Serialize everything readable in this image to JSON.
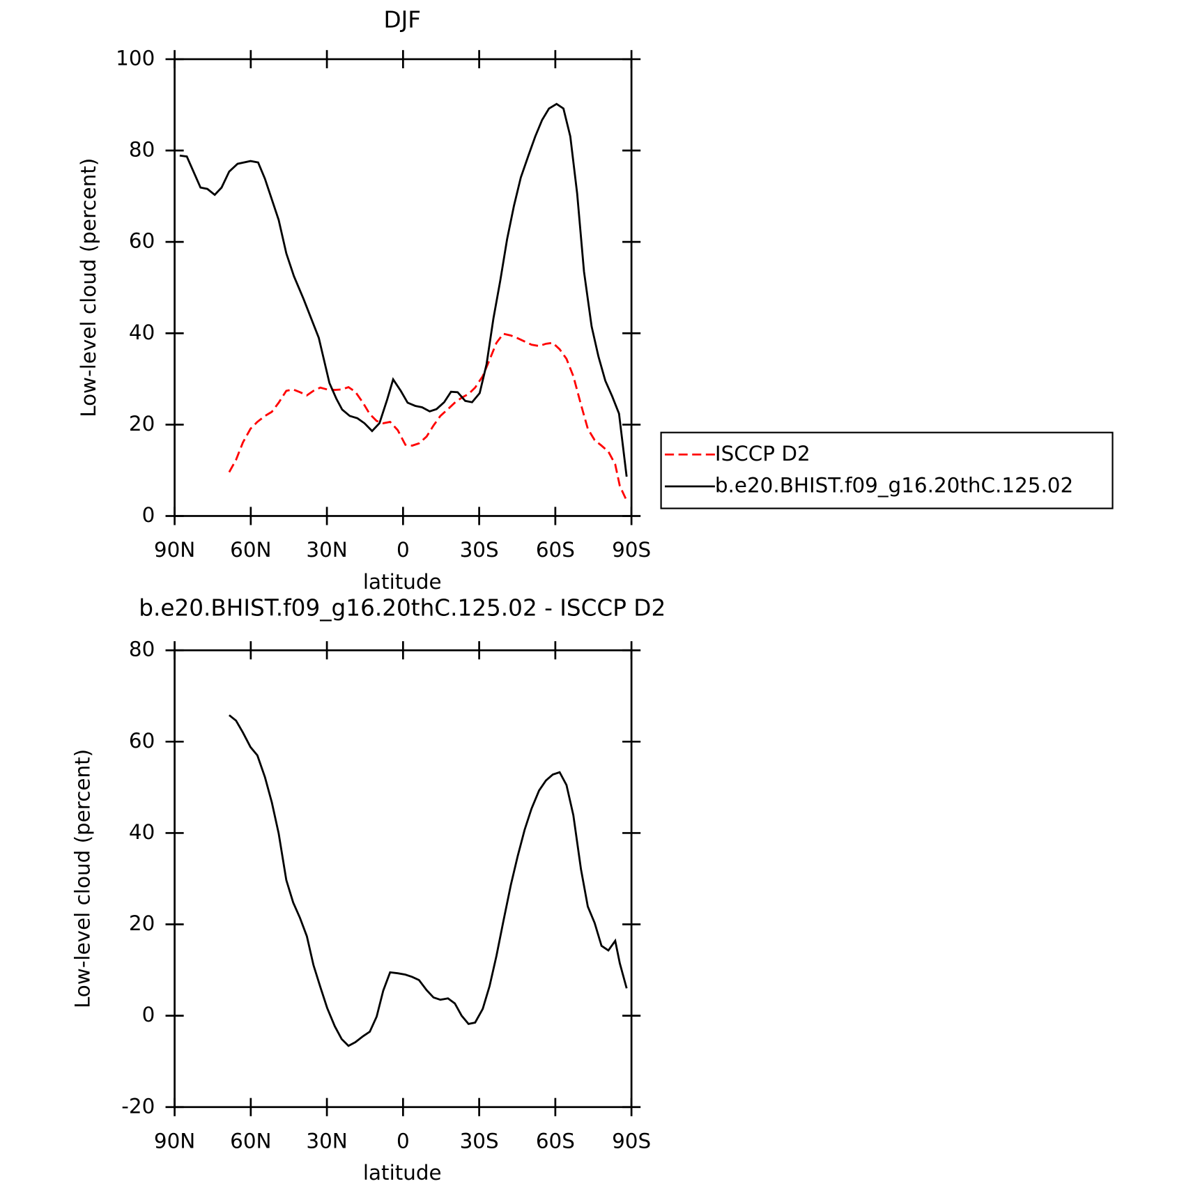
{
  "chart_data": [
    {
      "type": "line",
      "title": "DJF",
      "ylabel": "Low-level cloud (percent)",
      "xlabel": "latitude",
      "xlim": [
        90,
        -90
      ],
      "xticks": [
        {
          "value": 90,
          "label": "90N"
        },
        {
          "value": 60,
          "label": "60N"
        },
        {
          "value": 30,
          "label": "30N"
        },
        0,
        {
          "value": -30,
          "label": "30S"
        },
        {
          "value": -60,
          "label": "60S"
        },
        {
          "value": -90,
          "label": "90S"
        }
      ],
      "ylim": [
        0,
        100
      ],
      "yticks": [
        0,
        20,
        40,
        60,
        80,
        100
      ],
      "series": [
        {
          "name": "ISCCP D2",
          "color": "#ff0000",
          "linestyle": "dashed",
          "x": [
            68.5,
            65.8,
            63.1,
            60.1,
            57.4,
            54.4,
            51.7,
            49.0,
            46.0,
            43.3,
            40.6,
            37.9,
            35.3,
            32.6,
            29.9,
            26.9,
            24.2,
            21.5,
            18.8,
            15.8,
            13.1,
            10.4,
            7.8,
            5.1,
            2.1,
            -0.9,
            -3.6,
            -6.3,
            -9.3,
            -12.0,
            -14.7,
            -17.7,
            -20.4,
            -23.1,
            -25.8,
            -28.4,
            -31.4,
            -34.1,
            -36.8,
            -39.5,
            -42.5,
            -45.2,
            -47.9,
            -50.6,
            -53.6,
            -56.3,
            -59.0,
            -61.7,
            -64.4,
            -67.1,
            -70.1,
            -72.8,
            -75.5,
            -78.2,
            -80.9,
            -83.6,
            -85.4,
            -88.4
          ],
          "values": [
            9.6,
            12.3,
            16.1,
            19.1,
            20.6,
            21.9,
            22.8,
            24.8,
            27.4,
            27.7,
            27.1,
            26.4,
            27.4,
            28.1,
            27.7,
            27.6,
            27.7,
            28.2,
            27.2,
            24.8,
            22.3,
            20.8,
            20.3,
            20.6,
            18.8,
            15.6,
            15.4,
            15.9,
            17.4,
            19.8,
            21.9,
            23.4,
            24.8,
            25.9,
            26.7,
            28.1,
            30.6,
            34.2,
            37.9,
            39.9,
            39.5,
            38.9,
            38.2,
            37.5,
            37.2,
            37.7,
            37.9,
            36.5,
            34.4,
            30.6,
            24.4,
            19.1,
            16.6,
            15.4,
            14.1,
            11.3,
            6.6,
            3.0
          ]
        },
        {
          "name": "b.e20.BHIST.f09_g16.20thC.125.02",
          "color": "#000000",
          "linestyle": "solid",
          "x": [
            88.0,
            85.2,
            79.8,
            77.1,
            74.2,
            71.5,
            68.5,
            65.2,
            60.1,
            57.1,
            54.4,
            49.0,
            46.0,
            43.0,
            39.2,
            33.2,
            29.0,
            26.3,
            24.0,
            21.0,
            18.0,
            15.2,
            12.2,
            9.3,
            6.3,
            3.9,
            0.9,
            -1.8,
            -4.8,
            -7.5,
            -10.5,
            -13.2,
            -16.2,
            -18.9,
            -21.5,
            -24.5,
            -27.2,
            -30.2,
            -32.9,
            -35.6,
            -38.3,
            -41.0,
            -43.7,
            -46.4,
            -49.4,
            -52.1,
            -54.8,
            -57.5,
            -60.5,
            -63.2,
            -65.9,
            -68.6,
            -71.3,
            -74.3,
            -77.0,
            -79.7,
            -82.4,
            -85.1,
            -88.1
          ],
          "values": [
            78.9,
            78.7,
            71.9,
            71.6,
            70.3,
            71.9,
            75.4,
            77.1,
            77.7,
            77.4,
            73.8,
            64.8,
            57.5,
            52.5,
            47.5,
            39.0,
            29.1,
            25.7,
            23.3,
            21.9,
            21.4,
            20.3,
            18.6,
            20.3,
            25.4,
            29.9,
            27.4,
            24.8,
            24.1,
            23.8,
            22.9,
            23.4,
            24.9,
            27.2,
            27.1,
            25.2,
            24.9,
            26.9,
            33.2,
            43.2,
            51.5,
            60.6,
            67.9,
            74.1,
            78.9,
            83.1,
            86.7,
            89.2,
            90.2,
            89.2,
            83.1,
            70.6,
            53.5,
            41.5,
            34.9,
            29.6,
            26.2,
            22.4,
            8.6
          ]
        }
      ]
    },
    {
      "type": "line",
      "title": "b.e20.BHIST.f09_g16.20thC.125.02 - ISCCP D2",
      "ylabel": "Low-level cloud (percent)",
      "xlabel": "latitude",
      "xlim": [
        90,
        -90
      ],
      "xticks": [
        {
          "value": 90,
          "label": "90N"
        },
        {
          "value": 60,
          "label": "60N"
        },
        {
          "value": 30,
          "label": "30N"
        },
        0,
        {
          "value": -30,
          "label": "30S"
        },
        {
          "value": -60,
          "label": "60S"
        },
        {
          "value": -90,
          "label": "90S"
        }
      ],
      "ylim": [
        -20,
        80
      ],
      "yticks": [
        -20,
        0,
        20,
        40,
        60,
        80
      ],
      "series": [
        {
          "color": "#000000",
          "linestyle": "solid",
          "x": [
            68.5,
            65.8,
            63.1,
            60.1,
            57.4,
            54.4,
            51.7,
            49.0,
            46.0,
            43.3,
            40.6,
            37.9,
            35.3,
            32.6,
            29.9,
            26.9,
            24.2,
            21.5,
            18.8,
            15.8,
            13.1,
            10.4,
            7.8,
            5.1,
            2.1,
            -0.9,
            -3.6,
            -6.3,
            -9.3,
            -12.0,
            -14.7,
            -17.7,
            -20.4,
            -23.1,
            -25.8,
            -28.4,
            -31.4,
            -34.1,
            -36.8,
            -39.5,
            -42.5,
            -45.2,
            -47.9,
            -50.6,
            -53.6,
            -56.3,
            -59.0,
            -61.7,
            -64.4,
            -67.1,
            -70.1,
            -72.8,
            -75.5,
            -78.2,
            -80.9,
            -83.6,
            -85.4,
            -88.1
          ],
          "values": [
            65.8,
            64.6,
            62.0,
            58.8,
            57.0,
            52.2,
            46.7,
            39.9,
            29.7,
            24.8,
            21.4,
            17.4,
            11.1,
            6.3,
            1.7,
            -2.3,
            -5.1,
            -6.6,
            -5.8,
            -4.5,
            -3.5,
            -0.2,
            5.5,
            9.5,
            9.3,
            9.0,
            8.5,
            7.8,
            5.6,
            4.0,
            3.5,
            3.8,
            2.7,
            0,
            -1.8,
            -1.5,
            1.5,
            6.5,
            13.1,
            20.6,
            28.7,
            35.0,
            40.7,
            45.3,
            49.3,
            51.5,
            52.8,
            53.3,
            50.5,
            43.9,
            32.1,
            23.9,
            20.3,
            15.3,
            14.3,
            16.4,
            11.5,
            6.0
          ]
        }
      ]
    }
  ]
}
